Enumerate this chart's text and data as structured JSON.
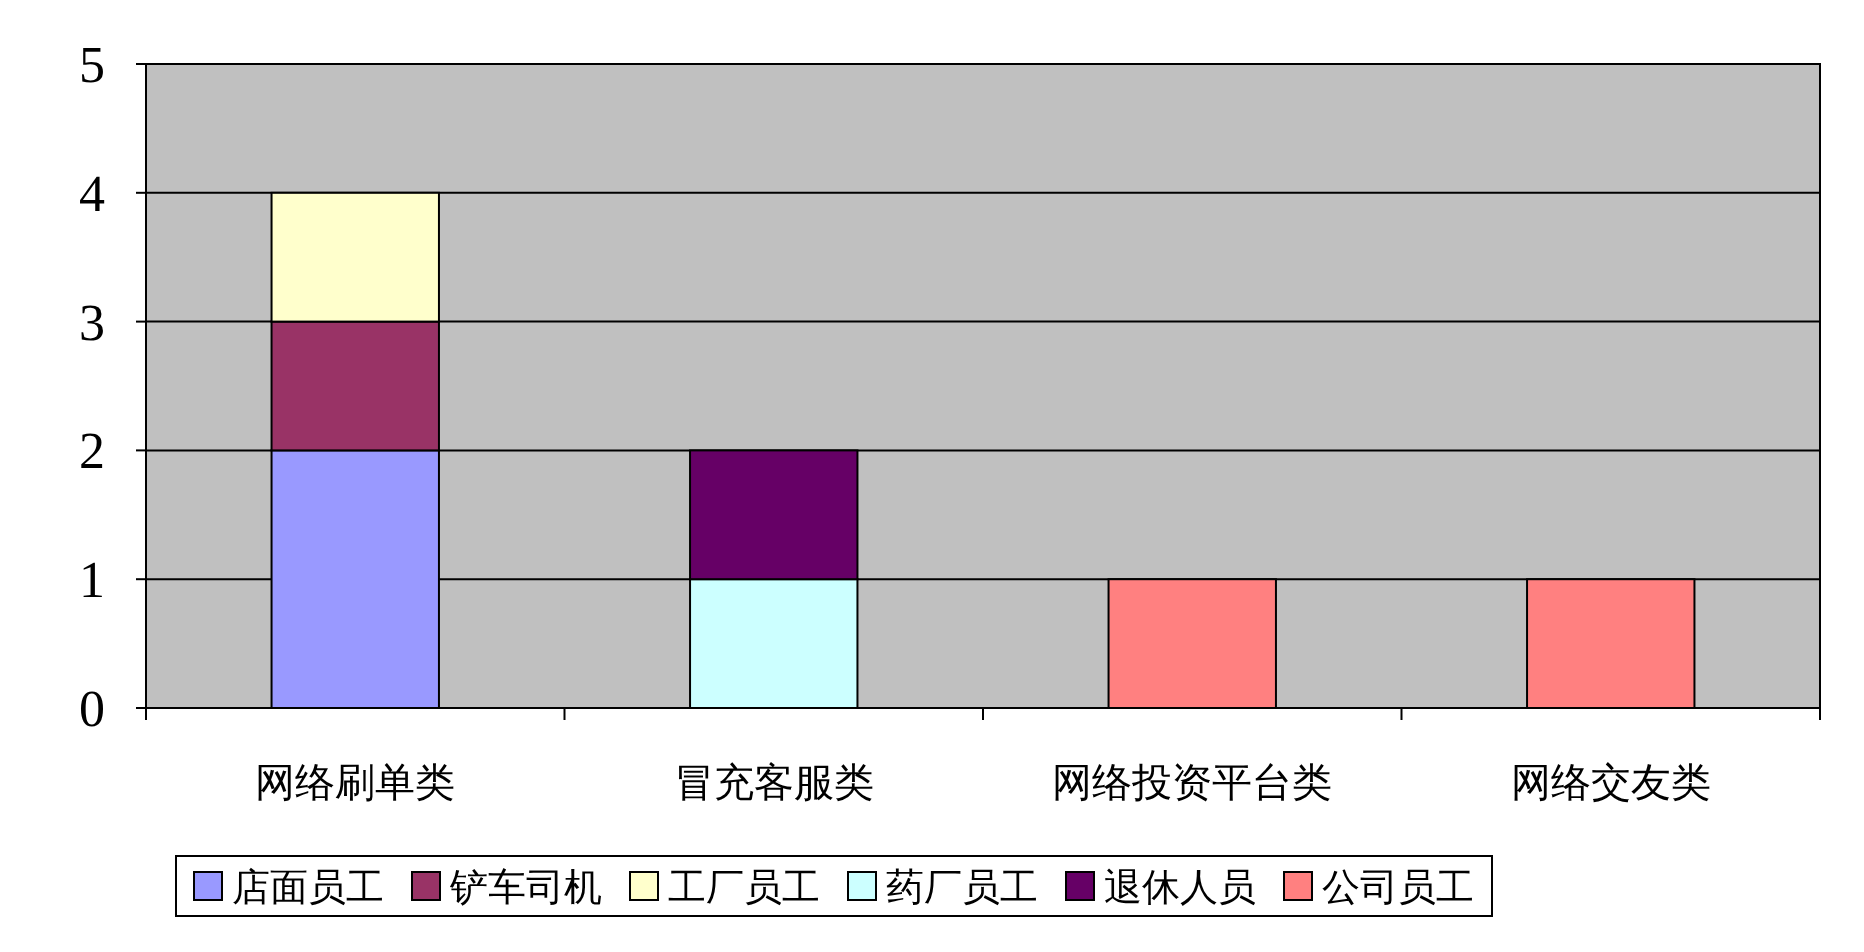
{
  "chart_data": {
    "type": "bar",
    "stacked": true,
    "categories": [
      "网络刷单类",
      "冒充客服类",
      "网络投资平台类",
      "网络交友类"
    ],
    "series": [
      {
        "name": "店面员工",
        "color": "#9999ff",
        "values": [
          2,
          null,
          null,
          null
        ]
      },
      {
        "name": "铲车司机",
        "color": "#993366",
        "values": [
          1,
          null,
          null,
          null
        ]
      },
      {
        "name": "工厂员工",
        "color": "#ffffcc",
        "values": [
          1,
          null,
          null,
          null
        ]
      },
      {
        "name": "药厂员工",
        "color": "#ccffff",
        "values": [
          null,
          1,
          null,
          null
        ]
      },
      {
        "name": "退休人员",
        "color": "#660066",
        "values": [
          null,
          1,
          null,
          null
        ]
      },
      {
        "name": "公司员工",
        "color": "#ff8080",
        "values": [
          null,
          null,
          1,
          1
        ]
      }
    ],
    "ylim": [
      0,
      5
    ],
    "yticks": [
      0,
      1,
      2,
      3,
      4,
      5
    ],
    "grid": "y",
    "legend": "bottom"
  }
}
